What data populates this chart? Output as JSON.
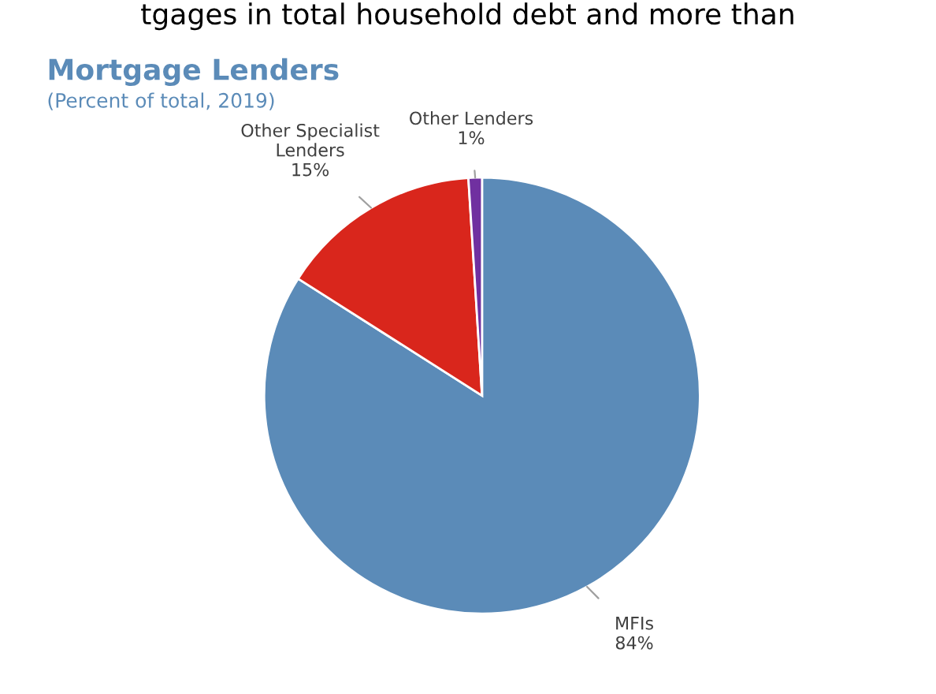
{
  "chart_data": {
    "type": "pie",
    "title": "Mortgage Lenders",
    "subtitle": "(Percent of total, 2019)",
    "annotations": [
      "tgages in total household debt and more than"
    ],
    "categories": [
      "MFIs",
      "Other Specialist\nLenders",
      "Other Lenders"
    ],
    "values": [
      84,
      15,
      1
    ],
    "colors": [
      "#5b8bb8",
      "#d9261c",
      "#7030a0"
    ],
    "value_labels": [
      "84%",
      "15%",
      "1%"
    ]
  }
}
